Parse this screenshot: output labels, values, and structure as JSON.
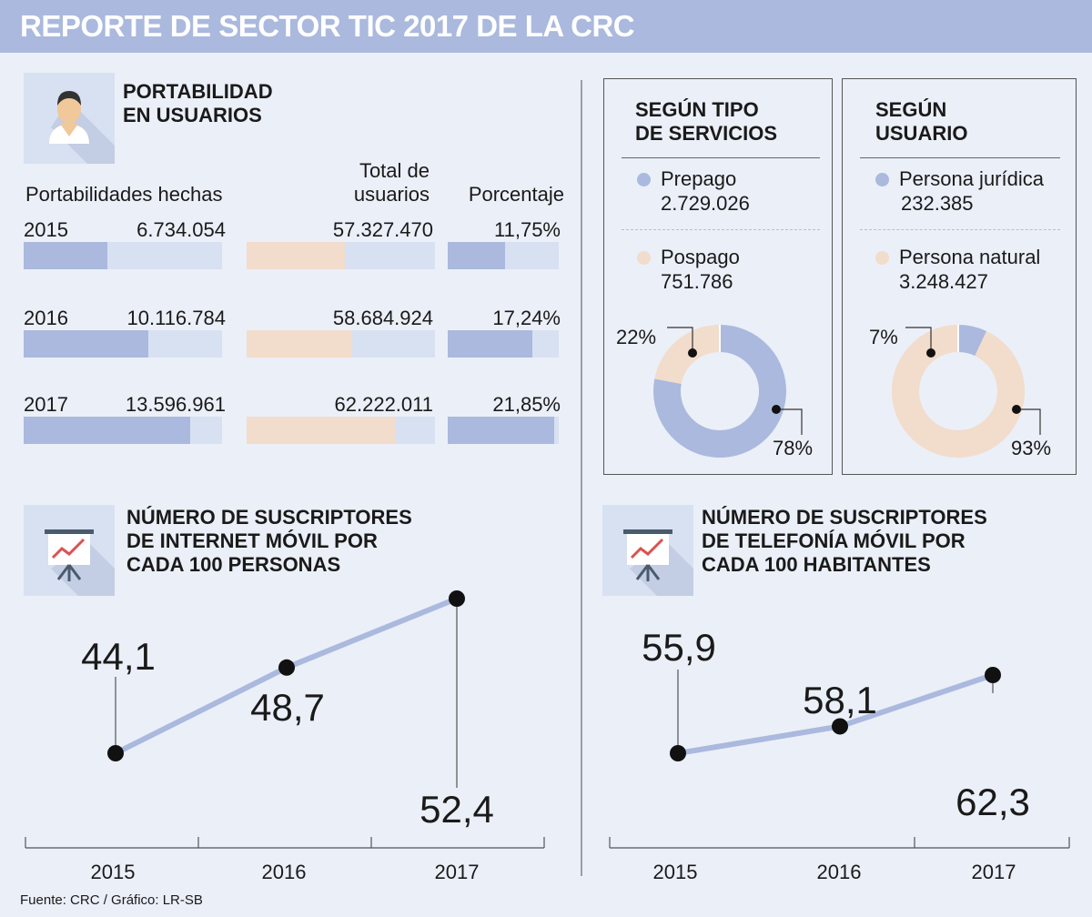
{
  "header": {
    "title": "REPORTE DE SECTOR TIC 2017 DE LA CRC"
  },
  "colors": {
    "blue": "#aab9dd",
    "peach": "#f2dccb",
    "light": "#d8e1f2",
    "line": "#aab9dd"
  },
  "portability": {
    "title": "PORTABILIDAD\nEN USUARIOS",
    "icon": "user-icon",
    "col1_label": "Portabilidades hechas",
    "col2_label": "Total de\nusuarios",
    "col3_label": "Porcentaje",
    "rows": [
      {
        "year": "2015",
        "ported": "6.734.054",
        "ported_fill": 0.42,
        "total": "57.327.470",
        "total_fill": 0.52,
        "percent": "11,75%",
        "percent_fill": 0.52
      },
      {
        "year": "2016",
        "ported": "10.116.784",
        "ported_fill": 0.63,
        "total": "58.684.924",
        "total_fill": 0.56,
        "percent": "17,24%",
        "percent_fill": 0.76
      },
      {
        "year": "2017",
        "ported": "13.596.961",
        "ported_fill": 0.84,
        "total": "62.222.011",
        "total_fill": 0.79,
        "percent": "21,85%",
        "percent_fill": 0.96
      }
    ]
  },
  "by_service": {
    "title": "SEGÚN TIPO\nDE SERVICIOS",
    "item1_label": "Prepago",
    "item1_value": "2.729.026",
    "item2_label": "Pospago",
    "item2_value": "751.786",
    "pct_small": "22%",
    "pct_large": "78%"
  },
  "by_user": {
    "title": "SEGÚN\nUSUARIO",
    "item1_label": "Persona jurídica",
    "item1_value": "232.385",
    "item2_label": "Persona natural",
    "item2_value": "3.248.427",
    "pct_small": "7%",
    "pct_large": "93%"
  },
  "internet": {
    "title": "NÚMERO DE SUSCRIPTORES\nDE INTERNET MÓVIL POR\nCADA 100 PERSONAS",
    "icon": "presentation-chart-icon"
  },
  "telephony": {
    "title": "NÚMERO DE SUSCRIPTORES\nDE TELEFONÍA MÓVIL POR\nCADA 100 HABITANTES",
    "icon": "presentation-chart-icon"
  },
  "chart_data": [
    {
      "type": "pie",
      "title": "SEGÚN TIPO DE SERVICIOS",
      "categories": [
        "Prepago",
        "Pospago"
      ],
      "values": [
        78,
        22
      ],
      "labels": [
        "78%",
        "22%"
      ],
      "raw_values": [
        "2.729.026",
        "751.786"
      ]
    },
    {
      "type": "pie",
      "title": "SEGÚN USUARIO",
      "categories": [
        "Persona jurídica",
        "Persona natural"
      ],
      "values": [
        7,
        93
      ],
      "labels": [
        "7%",
        "93%"
      ],
      "raw_values": [
        "232.385",
        "3.248.427"
      ]
    },
    {
      "type": "line",
      "title": "NÚMERO DE SUSCRIPTORES DE INTERNET MÓVIL POR CADA 100 PERSONAS",
      "categories": [
        "2015",
        "2016",
        "2017"
      ],
      "values": [
        44.1,
        48.7,
        52.4
      ],
      "labels": [
        "44,1",
        "48,7",
        "52,4"
      ]
    },
    {
      "type": "line",
      "title": "NÚMERO DE SUSCRIPTORES DE TELEFONÍA MÓVIL POR CADA 100 HABITANTES",
      "categories": [
        "2015",
        "2016",
        "2017"
      ],
      "values": [
        55.9,
        58.1,
        62.3
      ],
      "labels": [
        "55,9",
        "58,1",
        "62,3"
      ]
    }
  ],
  "footer": {
    "source": "Fuente: CRC / Gráfico: LR-SB"
  }
}
